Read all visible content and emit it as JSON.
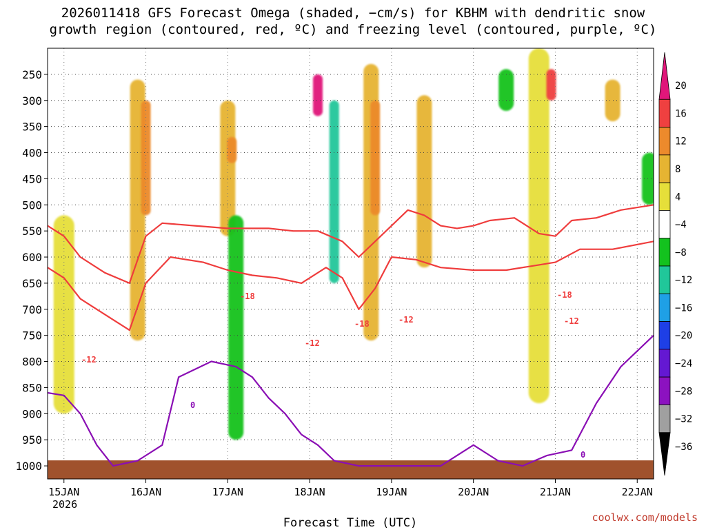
{
  "chart_data": {
    "type": "heatmap",
    "title_line1": "2026011418 GFS Forecast Omega (shaded, −cm/s) for KBHM with dendritic snow",
    "title_line2": "growth region (contoured, red, ºC) and freezing level (contoured, purple, ºC)",
    "xlabel": "Forecast Time (UTC)",
    "ylabel": "",
    "x_ticks": [
      "15JAN",
      "16JAN",
      "17JAN",
      "18JAN",
      "19JAN",
      "20JAN",
      "21JAN",
      "22JAN"
    ],
    "x_year_label": "2026",
    "x_range_days": [
      14.8,
      22.2
    ],
    "y_ticks": [
      250,
      300,
      350,
      400,
      450,
      500,
      550,
      600,
      650,
      700,
      750,
      800,
      850,
      900,
      950,
      1000
    ],
    "y_range_hpa": [
      200,
      1025
    ],
    "colorbar": {
      "labels": [
        "20",
        "16",
        "12",
        "8",
        "4",
        "−4",
        "−8",
        "−12",
        "−16",
        "−20",
        "−24",
        "−28",
        "−32",
        "−36"
      ],
      "colors": [
        "#e0167a",
        "#ef4040",
        "#ec8a2c",
        "#e6b432",
        "#e6df3a",
        "#ffffff",
        "#13c21e",
        "#20c79a",
        "#1fa0e6",
        "#1e3fe6",
        "#6418d2",
        "#8c12c0",
        "#a0a0a0",
        "#000000"
      ]
    },
    "contour_labels": {
      "dgz_upper": "-18",
      "dgz_lower": "-12",
      "freezing": "0"
    },
    "contour_colors": {
      "dgz": "#ef3c3c",
      "freezing": "#8a0eb4",
      "ground": "#a0522d"
    },
    "series": [
      {
        "name": "dgz_-18C_isotherm_hPa",
        "x": [
          14.8,
          15.0,
          15.2,
          15.5,
          15.8,
          16.0,
          16.2,
          16.6,
          17.0,
          17.2,
          17.5,
          17.8,
          18.1,
          18.4,
          18.6,
          18.8,
          19.0,
          19.2,
          19.4,
          19.6,
          19.8,
          20.0,
          20.2,
          20.5,
          20.8,
          21.0,
          21.2,
          21.5,
          21.8,
          22.2
        ],
        "values": [
          540,
          560,
          600,
          630,
          650,
          560,
          535,
          540,
          545,
          545,
          545,
          550,
          550,
          570,
          600,
          570,
          540,
          510,
          520,
          540,
          545,
          540,
          530,
          525,
          555,
          560,
          530,
          525,
          510,
          500
        ]
      },
      {
        "name": "dgz_-12C_isotherm_hPa",
        "x": [
          14.8,
          15.0,
          15.2,
          15.4,
          15.6,
          15.8,
          16.0,
          16.3,
          16.7,
          17.0,
          17.3,
          17.6,
          17.9,
          18.2,
          18.4,
          18.6,
          18.8,
          19.0,
          19.3,
          19.6,
          20.0,
          20.4,
          20.8,
          21.0,
          21.3,
          21.7,
          22.2
        ],
        "values": [
          620,
          640,
          680,
          700,
          720,
          740,
          650,
          600,
          610,
          625,
          635,
          640,
          650,
          620,
          640,
          700,
          660,
          600,
          605,
          620,
          625,
          625,
          615,
          610,
          585,
          585,
          570
        ]
      },
      {
        "name": "freezing_level_0C_isotherm_hPa",
        "x": [
          14.8,
          15.0,
          15.2,
          15.4,
          15.6,
          15.9,
          16.2,
          16.4,
          16.8,
          17.1,
          17.3,
          17.5,
          17.7,
          17.9,
          18.1,
          18.3,
          18.6,
          18.9,
          19.2,
          19.6,
          20.0,
          20.3,
          20.6,
          20.9,
          21.2,
          21.5,
          21.8,
          22.2
        ],
        "values": [
          860,
          865,
          900,
          960,
          1000,
          990,
          960,
          830,
          800,
          810,
          830,
          870,
          900,
          940,
          960,
          990,
          1000,
          1000,
          1000,
          1000,
          960,
          990,
          1000,
          980,
          970,
          880,
          810,
          750
        ]
      }
    ],
    "omega_features": [
      {
        "day": 15.0,
        "p_top": 520,
        "p_bot": 900,
        "value": 4
      },
      {
        "day": 15.9,
        "p_top": 260,
        "p_bot": 760,
        "value": 8
      },
      {
        "day": 16.0,
        "p_top": 300,
        "p_bot": 520,
        "value": 12
      },
      {
        "day": 17.0,
        "p_top": 300,
        "p_bot": 560,
        "value": 8
      },
      {
        "day": 17.05,
        "p_top": 370,
        "p_bot": 420,
        "value": 12
      },
      {
        "day": 17.1,
        "p_top": 520,
        "p_bot": 950,
        "value": -8
      },
      {
        "day": 18.1,
        "p_top": 250,
        "p_bot": 330,
        "value": 20
      },
      {
        "day": 18.3,
        "p_top": 300,
        "p_bot": 650,
        "value": -12
      },
      {
        "day": 18.75,
        "p_top": 230,
        "p_bot": 760,
        "value": 8
      },
      {
        "day": 18.8,
        "p_top": 300,
        "p_bot": 520,
        "value": 12
      },
      {
        "day": 19.4,
        "p_top": 290,
        "p_bot": 620,
        "value": 8
      },
      {
        "day": 20.4,
        "p_top": 240,
        "p_bot": 320,
        "value": -8
      },
      {
        "day": 20.8,
        "p_top": 200,
        "p_bot": 880,
        "value": 4
      },
      {
        "day": 20.95,
        "p_top": 240,
        "p_bot": 300,
        "value": 16
      },
      {
        "day": 21.7,
        "p_top": 260,
        "p_bot": 340,
        "value": 8
      },
      {
        "day": 22.15,
        "p_top": 400,
        "p_bot": 500,
        "value": -8
      }
    ]
  },
  "credit": "coolwx.com/models"
}
